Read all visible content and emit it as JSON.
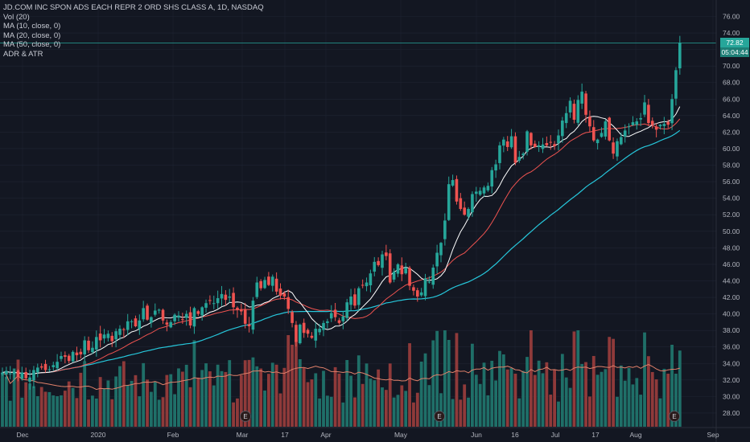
{
  "legend": {
    "title": "JD.COM INC SPON ADS EACH REPR 2 ORD SHS CLASS A, 1D, NASDAQ",
    "vol": "Vol (20)",
    "ma10": "MA (10, close, 0)",
    "ma20": "MA (20, close, 0)",
    "ma50": "MA (50, close, 0)",
    "adr": "ADR & ATR"
  },
  "price_tag": {
    "last": "72.82",
    "countdown": "05:04:44"
  },
  "colors": {
    "background": "#131722",
    "grid": "#1f2433",
    "up": "#26a69a",
    "down": "#ef5350",
    "volume_up": "#1f6f68",
    "volume_down": "#8f3a3a",
    "ma10": "#ffffff",
    "ma20": "#ef5350",
    "ma50": "#26c6da",
    "vol_ma": "#e0806a"
  },
  "chart_data": {
    "type": "candlestick",
    "ylim": [
      26.5,
      77.5
    ],
    "y_ticks": [
      "28.00",
      "30.00",
      "32.00",
      "34.00",
      "36.00",
      "38.00",
      "40.00",
      "42.00",
      "44.00",
      "46.00",
      "48.00",
      "50.00",
      "52.00",
      "54.00",
      "56.00",
      "58.00",
      "60.00",
      "62.00",
      "64.00",
      "66.00",
      "68.00",
      "70.00",
      "72.00",
      "74.00",
      "76.00"
    ],
    "x_ticks": [
      "Dec",
      "2020",
      "Feb",
      "Mar",
      "17",
      "Apr",
      "May",
      "Jun",
      "16",
      "Jul",
      "17",
      "Aug",
      "Sep"
    ],
    "earnings_markers": [
      "E",
      "E",
      "E"
    ],
    "close": [
      32.9,
      33.1,
      32.8,
      33.0,
      32.4,
      32.9,
      32.2,
      32.3,
      33.2,
      33.5,
      33.5,
      33.2,
      33.3,
      33.8,
      34.2,
      34.9,
      34.8,
      34.3,
      35.4,
      35.0,
      35.1,
      36.8,
      35.6,
      35.9,
      37.2,
      36.8,
      37.5,
      37.6,
      36.7,
      37.9,
      38.2,
      38.1,
      39.1,
      39.1,
      38.5,
      39.2,
      40.7,
      39.3,
      39.6,
      40.4,
      40.5,
      39.2,
      38.7,
      39.0,
      39.9,
      39.8,
      39.3,
      40.0,
      38.6,
      40.7,
      40.0,
      40.8,
      41.3,
      41.6,
      41.3,
      41.9,
      42.4,
      41.7,
      42.1,
      40.8,
      40.5,
      40.3,
      38.8,
      38.5,
      41.6,
      43.8,
      43.1,
      44.1,
      43.5,
      44.5,
      42.7,
      42.2,
      42.1,
      40.6,
      38.9,
      36.6,
      38.7,
      37.7,
      37.6,
      37.1,
      38.2,
      38.2,
      38.9,
      39.1,
      40.1,
      39.6,
      38.9,
      39.7,
      41.4,
      42.1,
      41.0,
      43.1,
      43.5,
      43.8,
      44.9,
      46.3,
      45.9,
      47.2,
      47.0,
      43.8,
      45.1,
      46.0,
      44.8,
      45.6,
      43.4,
      42.8,
      42.1,
      42.6,
      44.3,
      43.9,
      45.6,
      47.4,
      48.6,
      51.3,
      55.7,
      56.2,
      53.6,
      52.7,
      52.0,
      52.7,
      54.5,
      54.8,
      54.9,
      55.3,
      55.5,
      57.4,
      58.1,
      60.4,
      61.1,
      60.2,
      61.5,
      58.3,
      59.0,
      59.4,
      62.1,
      60.4,
      60.2,
      60.4,
      60.5,
      60.4,
      60.8,
      60.3,
      61.6,
      63.4,
      64.3,
      65.8,
      63.5,
      65.9,
      66.9,
      64.1,
      62.7,
      61.0,
      61.1,
      61.9,
      63.3,
      61.0,
      59.4,
      60.9,
      61.4,
      62.2,
      62.7,
      63.2,
      63.3,
      63.7,
      65.6,
      63.1,
      62.9,
      62.3,
      62.9,
      63.0,
      62.9,
      66.0,
      69.5,
      72.8
    ]
  }
}
